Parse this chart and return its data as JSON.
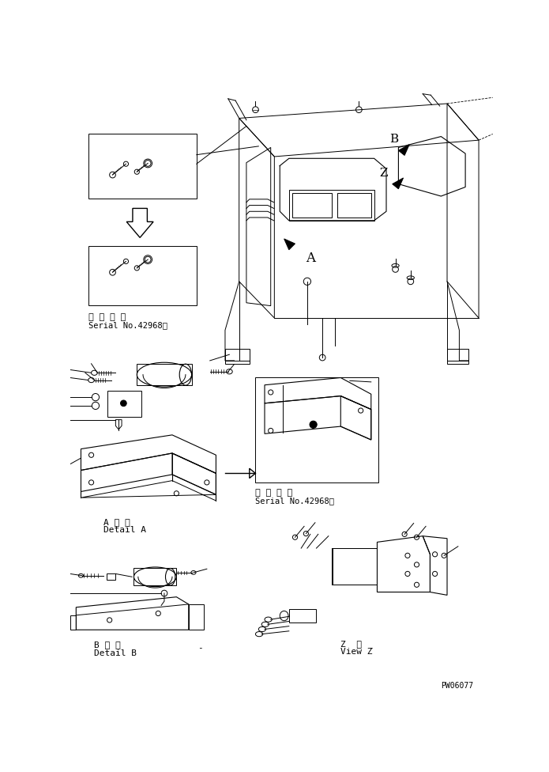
{
  "bg_color": "#ffffff",
  "lc": "#000000",
  "lw": 0.7,
  "fig_w": 6.95,
  "fig_h": 9.76,
  "dpi": 100,
  "texts": {
    "serial_top_1": "適 用 号 機",
    "serial_top_2": "Serial No.42968～",
    "serial_mid_1": "適 用 号 機",
    "serial_mid_2": "Serial No.42968～",
    "det_a_jp": "A 詳 細",
    "det_a_en": "Detail A",
    "det_b_jp": "B 詳 細",
    "det_b_en": "Detail B",
    "view_z_jp": "Z  視",
    "view_z_en": "View Z",
    "dash1": "-",
    "dash2": "-",
    "code": "PW06077"
  }
}
